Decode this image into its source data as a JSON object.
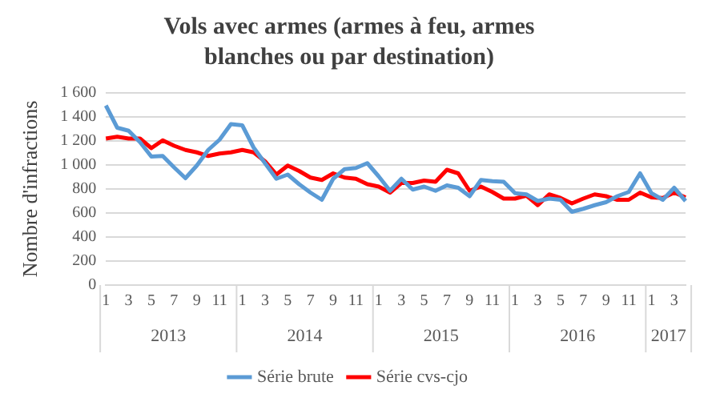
{
  "chart_data": {
    "type": "line",
    "title": "Vols avec armes (armes à feu, armes blanches ou par destination)",
    "ylabel": "Nombre d'infractions",
    "categories": [
      "1",
      null,
      "3",
      null,
      "5",
      null,
      "7",
      null,
      "9",
      null,
      "11",
      null,
      "1",
      null,
      "3",
      null,
      "5",
      null,
      "7",
      null,
      "9",
      null,
      "11",
      null,
      "1",
      null,
      "3",
      null,
      "5",
      null,
      "7",
      null,
      "9",
      null,
      "11",
      null,
      "1",
      null,
      "3",
      null,
      "5",
      null,
      "7",
      null,
      "9",
      null,
      "11",
      null,
      "1",
      null,
      "3",
      null
    ],
    "annotations": [
      "2013",
      "2014",
      "2015",
      "2016",
      "2017"
    ],
    "series": [
      {
        "name": "Série brute",
        "color": "#5b9bd5",
        "values": [
          1495,
          1310,
          1285,
          1190,
          1070,
          1075,
          980,
          890,
          995,
          1125,
          1210,
          1340,
          1330,
          1145,
          1015,
          885,
          920,
          840,
          770,
          710,
          885,
          965,
          975,
          1015,
          905,
          785,
          885,
          795,
          820,
          785,
          830,
          810,
          740,
          875,
          865,
          860,
          765,
          755,
          700,
          720,
          710,
          610,
          635,
          665,
          690,
          740,
          775,
          930,
          765,
          710,
          810,
          700
        ]
      },
      {
        "name": "Série cvs-cjo",
        "color": "#ff0000",
        "values": [
          1220,
          1235,
          1220,
          1220,
          1140,
          1205,
          1160,
          1125,
          1105,
          1075,
          1095,
          1105,
          1125,
          1105,
          1030,
          920,
          995,
          950,
          895,
          875,
          930,
          895,
          885,
          840,
          820,
          770,
          850,
          850,
          870,
          860,
          960,
          930,
          785,
          820,
          775,
          720,
          720,
          745,
          665,
          755,
          725,
          680,
          720,
          755,
          740,
          710,
          710,
          770,
          730,
          725,
          770,
          730
        ]
      }
    ],
    "ylim": [
      0,
      1600
    ],
    "yticks": [
      0,
      200,
      400,
      600,
      800,
      1000,
      1200,
      1400,
      1600
    ],
    "grid": "y",
    "legend": "bottom",
    "marker": "none",
    "line_style": "solid"
  }
}
